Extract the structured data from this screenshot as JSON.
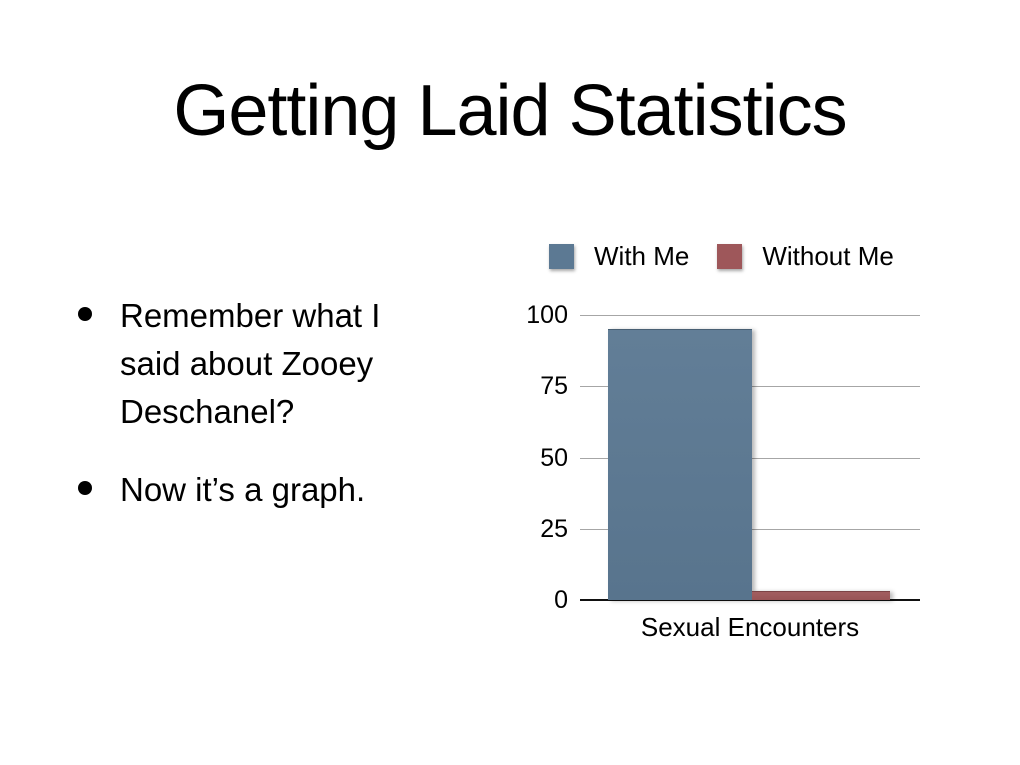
{
  "slide": {
    "title": "Getting Laid Statistics",
    "bullets": [
      "Remember what I said about Zooey Deschanel?",
      "Now it’s a graph."
    ]
  },
  "chart_data": {
    "type": "bar",
    "title": "",
    "categories": [
      "Sexual Encounters"
    ],
    "series": [
      {
        "name": "With Me",
        "value": 95,
        "color": "#5c7993"
      },
      {
        "name": "Without Me",
        "value": 3,
        "color": "#9e575a"
      }
    ],
    "xlabel": "Sexual Encounters",
    "ylabel": "",
    "ylim": [
      0,
      100
    ],
    "yticks": [
      0,
      25,
      50,
      75,
      100
    ],
    "grid": true,
    "legend_position": "top",
    "colors": {
      "gridline": "#a6a6a6",
      "axis_line": "#111111",
      "text": "#000000",
      "background": "#ffffff"
    }
  }
}
